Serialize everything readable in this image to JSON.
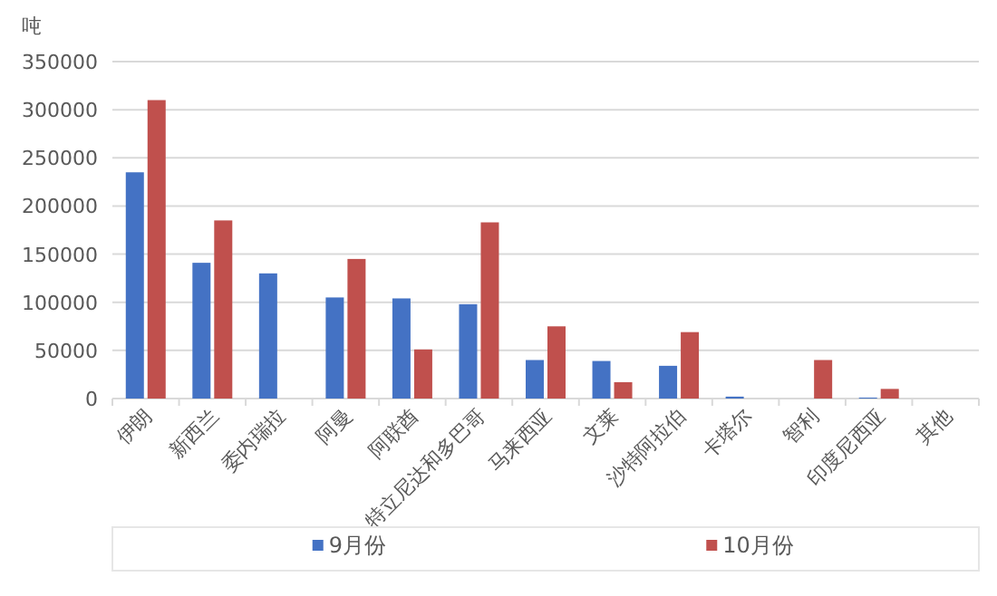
{
  "chart_data": {
    "type": "bar",
    "ylabel": "吨",
    "categories": [
      "伊朗",
      "新西兰",
      "委内瑞拉",
      "阿曼",
      "阿联酋",
      "特立尼达和多巴哥",
      "马来西亚",
      "文莱",
      "沙特阿拉伯",
      "卡塔尔",
      "智利",
      "印度尼西亚",
      "其他"
    ],
    "series": [
      {
        "name": "9月份",
        "color": "#4472c4",
        "values": [
          235000,
          141000,
          130000,
          105000,
          104000,
          98000,
          40000,
          39000,
          34000,
          2000,
          0,
          1000,
          0
        ]
      },
      {
        "name": "10月份",
        "color": "#c0504d",
        "values": [
          310000,
          185000,
          0,
          145000,
          51000,
          183000,
          75000,
          17000,
          69000,
          0,
          40000,
          10000,
          0
        ]
      }
    ],
    "ylim": [
      0,
      350000
    ],
    "yticks": [
      0,
      50000,
      100000,
      150000,
      200000,
      250000,
      300000,
      350000
    ],
    "grid": "y",
    "legend": "bottom"
  }
}
